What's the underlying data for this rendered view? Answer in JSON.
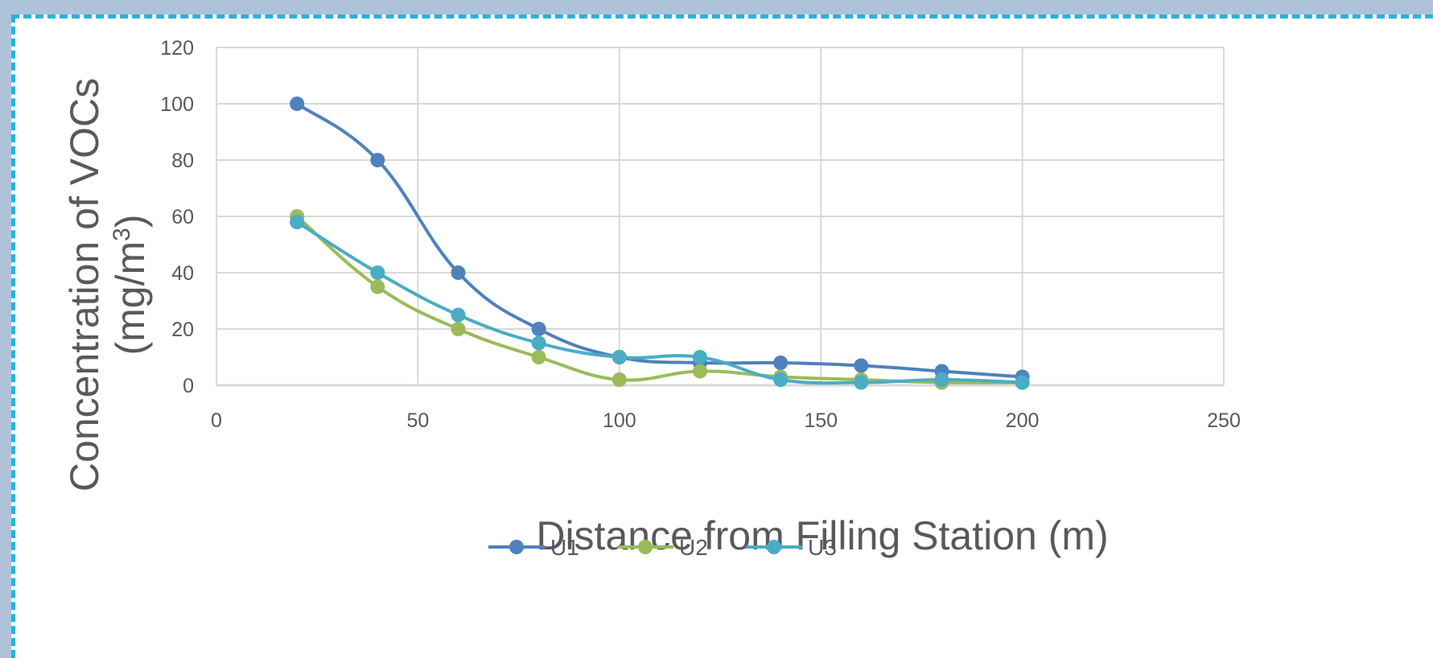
{
  "colors": {
    "border": "#1fb4e2",
    "grid": "#d9d9d9",
    "text": "#595959"
  },
  "chart_data": {
    "type": "line",
    "smooth": true,
    "markers": "circle",
    "title": "",
    "xlabel": "Distance from Filling Station (m)",
    "ylabel_line1": "Concentration of VOCs",
    "ylabel_line2_base": "(mg/m",
    "ylabel_line2_sup": "3",
    "ylabel_line2_close": ")",
    "xlim": [
      0,
      250
    ],
    "ylim": [
      0,
      120
    ],
    "xticks": [
      0,
      50,
      100,
      150,
      200,
      250
    ],
    "yticks": [
      0,
      20,
      40,
      60,
      80,
      100,
      120
    ],
    "grid": true,
    "legend_position": "bottom",
    "series": [
      {
        "name": "U1",
        "color": "#4f81bd",
        "x": [
          20,
          40,
          60,
          80,
          100,
          120,
          140,
          160,
          180,
          200
        ],
        "y": [
          100,
          80,
          40,
          20,
          10,
          8,
          8,
          7,
          5,
          3
        ]
      },
      {
        "name": "U2",
        "color": "#9bbb59",
        "x": [
          20,
          40,
          60,
          80,
          100,
          120,
          140,
          160,
          180,
          200
        ],
        "y": [
          60,
          35,
          20,
          10,
          2,
          5,
          3,
          2,
          1,
          1
        ]
      },
      {
        "name": "U3",
        "color": "#4bacc6",
        "x": [
          20,
          40,
          60,
          80,
          100,
          120,
          140,
          160,
          180,
          200
        ],
        "y": [
          58,
          40,
          25,
          15,
          10,
          10,
          2,
          1,
          2,
          1
        ]
      }
    ]
  }
}
